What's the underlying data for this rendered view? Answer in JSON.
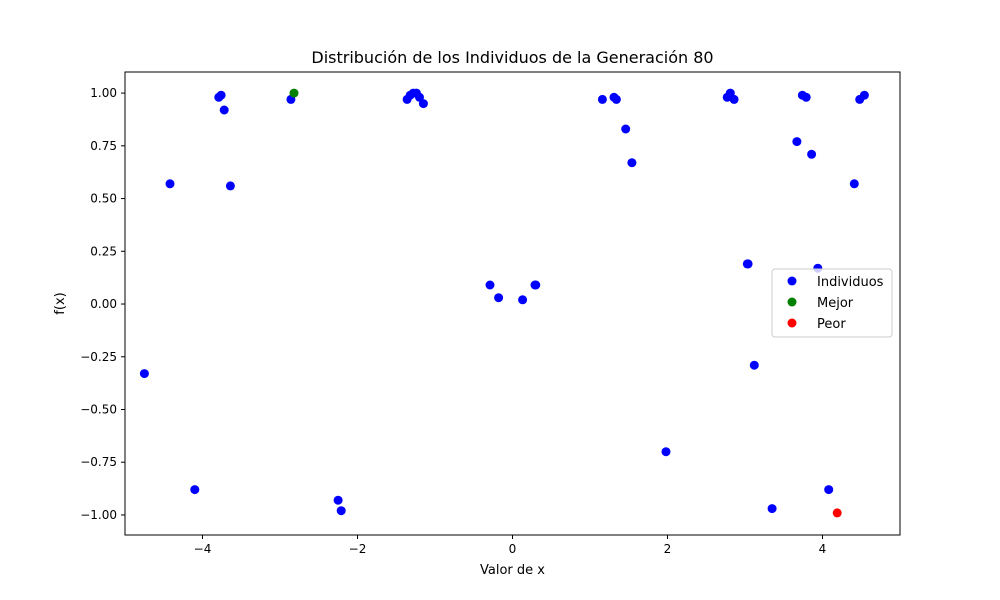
{
  "chart_data": {
    "type": "scatter",
    "title": "Distribución de los Individuos de la Generación 80",
    "xlabel": "Valor de x",
    "ylabel": "f(x)",
    "xlim": [
      -5.0,
      5.0
    ],
    "ylim": [
      -1.095,
      1.1
    ],
    "x_ticks": [
      -4,
      -2,
      0,
      2,
      4
    ],
    "y_ticks": [
      -1.0,
      -0.75,
      -0.5,
      -0.25,
      0.0,
      0.25,
      0.5,
      0.75,
      1.0
    ],
    "x_tick_labels": [
      "−4",
      "−2",
      "0",
      "2",
      "4"
    ],
    "y_tick_labels": [
      "−1.00",
      "−0.75",
      "−0.50",
      "−0.25",
      "0.00",
      "0.25",
      "0.50",
      "0.75",
      "1.00"
    ],
    "grid": false,
    "legend_position": "center-right",
    "series": [
      {
        "name": "Individuos",
        "color": "#0000ff",
        "points": [
          [
            -4.75,
            -0.33
          ],
          [
            -4.42,
            0.57
          ],
          [
            -4.1,
            -0.88
          ],
          [
            -3.79,
            0.98
          ],
          [
            -3.76,
            0.99
          ],
          [
            -3.72,
            0.92
          ],
          [
            -3.64,
            0.56
          ],
          [
            -2.86,
            0.97
          ],
          [
            -2.25,
            -0.93
          ],
          [
            -2.21,
            -0.98
          ],
          [
            -1.36,
            0.97
          ],
          [
            -1.32,
            0.99
          ],
          [
            -1.28,
            1.0
          ],
          [
            -1.24,
            1.0
          ],
          [
            -1.2,
            0.98
          ],
          [
            -1.15,
            0.95
          ],
          [
            -0.29,
            0.09
          ],
          [
            -0.18,
            0.03
          ],
          [
            0.13,
            0.02
          ],
          [
            0.29,
            0.09
          ],
          [
            0.3,
            0.09
          ],
          [
            1.16,
            0.97
          ],
          [
            1.31,
            0.98
          ],
          [
            1.34,
            0.97
          ],
          [
            1.46,
            0.83
          ],
          [
            1.54,
            0.67
          ],
          [
            1.98,
            -0.7
          ],
          [
            2.77,
            0.98
          ],
          [
            2.81,
            1.0
          ],
          [
            2.86,
            0.97
          ],
          [
            3.03,
            0.19
          ],
          [
            3.04,
            0.19
          ],
          [
            3.12,
            -0.29
          ],
          [
            3.35,
            -0.97
          ],
          [
            3.67,
            0.77
          ],
          [
            3.74,
            0.99
          ],
          [
            3.79,
            0.98
          ],
          [
            3.86,
            0.71
          ],
          [
            3.94,
            0.17
          ],
          [
            4.08,
            -0.88
          ],
          [
            4.41,
            0.57
          ],
          [
            4.48,
            0.97
          ],
          [
            4.54,
            0.99
          ]
        ]
      },
      {
        "name": "Mejor",
        "color": "#008000",
        "points": [
          [
            -2.82,
            1.0
          ]
        ]
      },
      {
        "name": "Peor",
        "color": "#ff0000",
        "points": [
          [
            4.19,
            -0.99
          ]
        ]
      }
    ]
  }
}
